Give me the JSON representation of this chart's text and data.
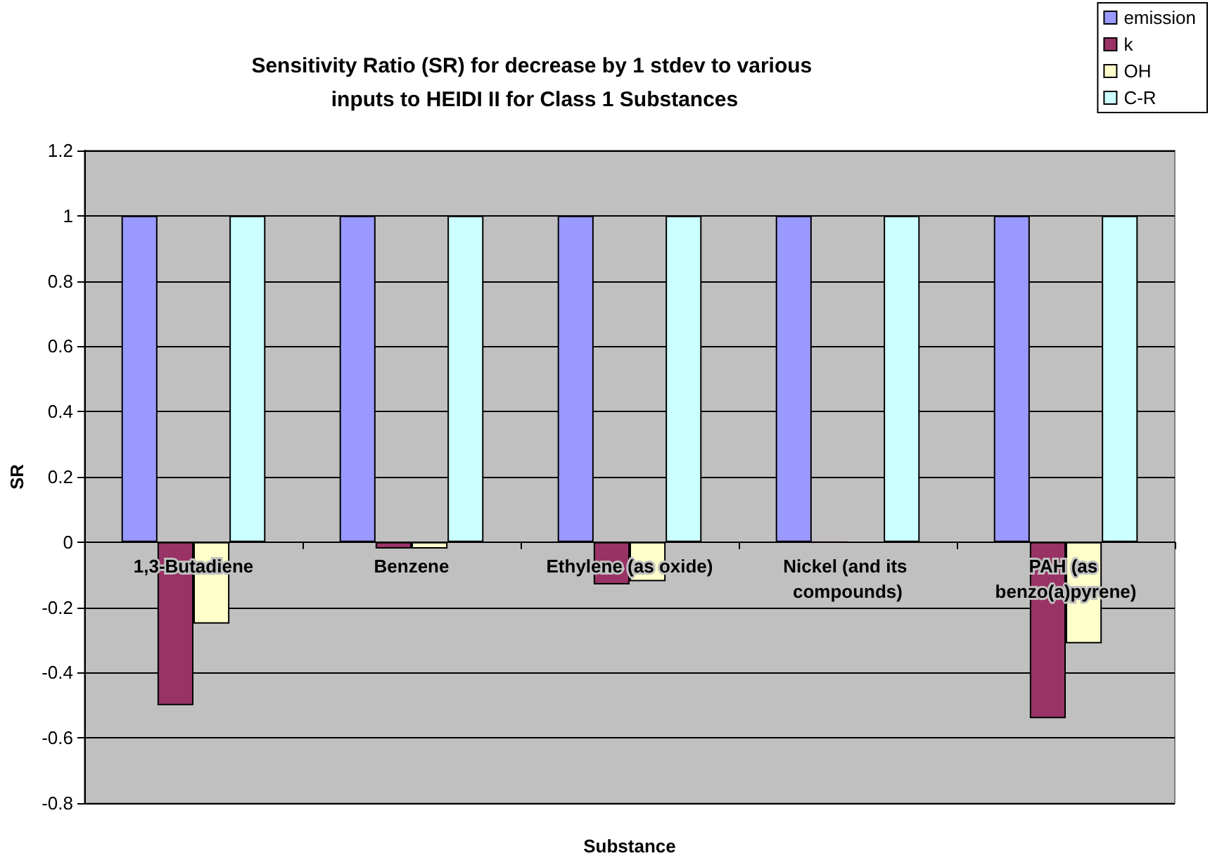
{
  "chart_data": {
    "type": "bar",
    "title": "Sensitivity Ratio (SR) for decrease by 1 stdev to various inputs to HEIDI II for Class 1 Substances",
    "xlabel": "Substance",
    "ylabel": "SR",
    "categories": [
      "1,3-Butadiene",
      "Benzene",
      "Ethylene (as oxide)",
      "Nickel (and its compounds)",
      "PAH (as benzo(a)pyrene)"
    ],
    "series": [
      {
        "name": "emission",
        "color": "#9999ff",
        "values": [
          1,
          1,
          1,
          1,
          1
        ]
      },
      {
        "name": "k",
        "color": "#993366",
        "values": [
          -0.5,
          -0.02,
          -0.13,
          0,
          -0.54
        ]
      },
      {
        "name": "OH",
        "color": "#ffffcc",
        "values": [
          -0.25,
          -0.02,
          -0.12,
          0,
          -0.31
        ]
      },
      {
        "name": "C-R",
        "color": "#ccffff",
        "values": [
          1,
          1,
          1,
          1,
          1
        ]
      }
    ],
    "ylim": [
      -0.8,
      1.2
    ],
    "yticks": [
      -0.8,
      -0.6,
      -0.4,
      -0.2,
      0,
      0.2,
      0.4,
      0.6,
      0.8,
      1,
      1.2
    ],
    "grid": "y",
    "legend": "top right"
  }
}
